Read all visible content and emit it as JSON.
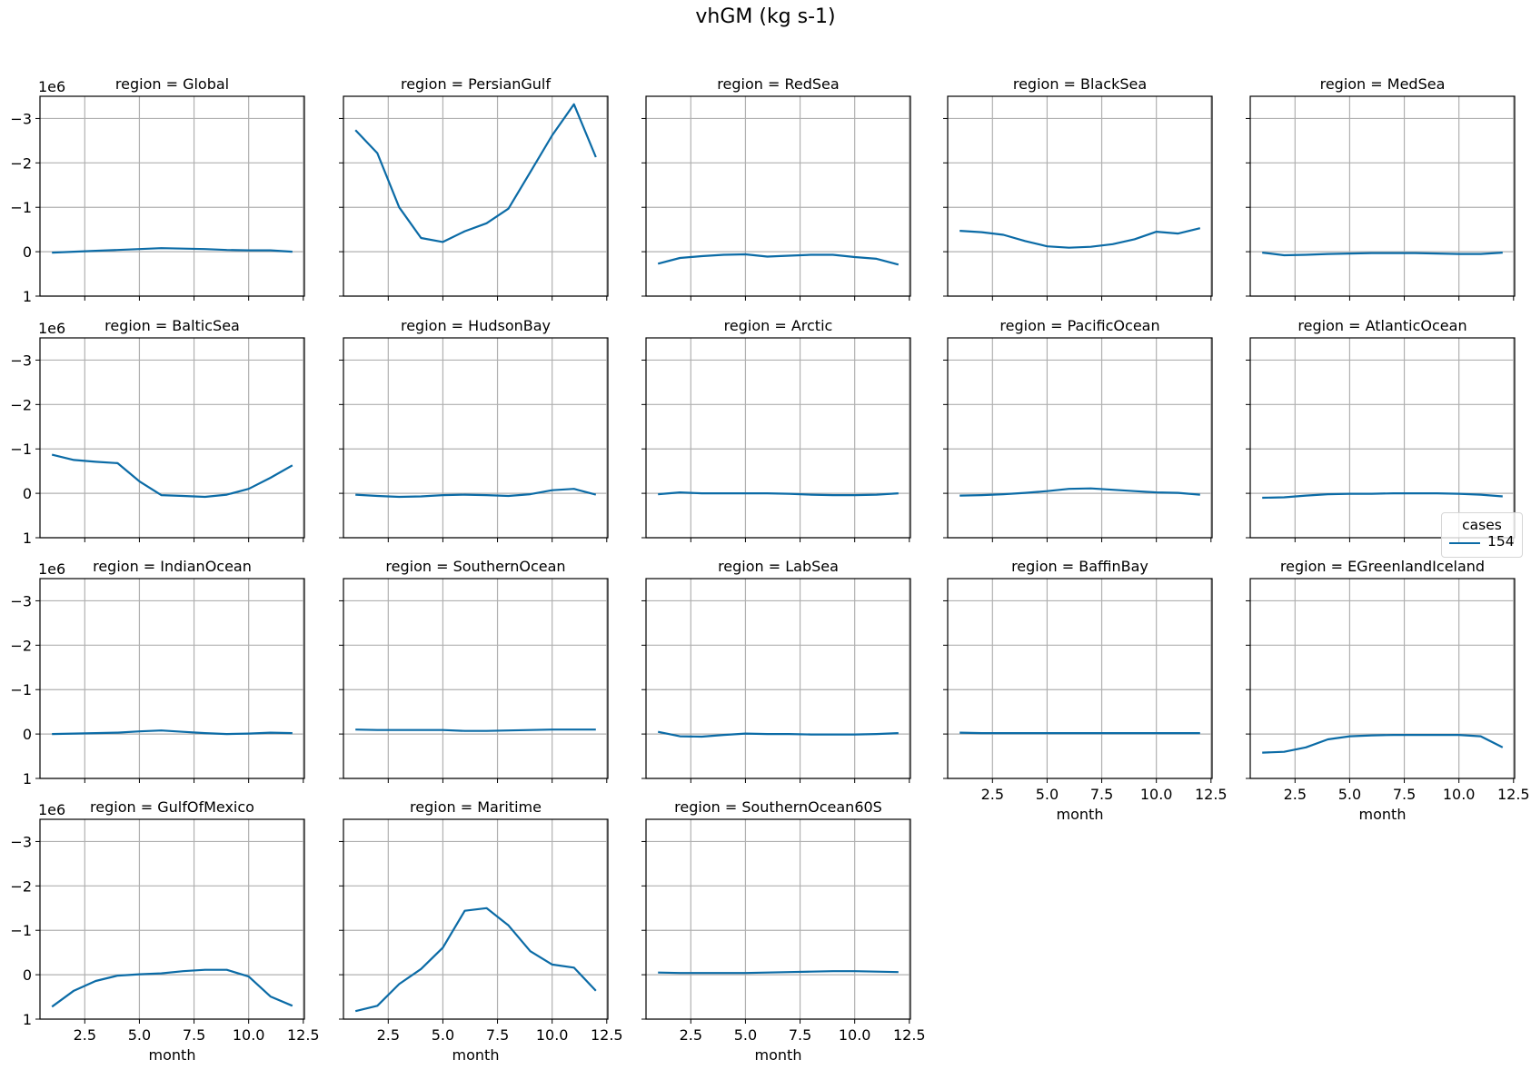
{
  "figure": {
    "title": "vhGM (kg s-1)",
    "line_color": "#0b6ba6",
    "grid_color": "#b0b0b0",
    "offset_label": "1e6",
    "xlabel": "month"
  },
  "legend": {
    "title": "cases",
    "entries": [
      {
        "label": "154",
        "color": "#0b6ba6"
      }
    ]
  },
  "chart_data": {
    "type": "line",
    "title": "vhGM (kg s-1)",
    "layout": "facet grid 4 rows x 5 cols, shared axes, y-axis inverted",
    "xlabel": "month",
    "ylabel": "",
    "y_scale_note": "values in units of 1e6",
    "xlim": [
      0.45,
      12.55
    ],
    "ylim": [
      1.0,
      -3.5
    ],
    "xticks": [
      "2.5",
      "5.0",
      "7.5",
      "10.0",
      "12.5"
    ],
    "xtick_values": [
      2.5,
      5.0,
      7.5,
      10.0,
      12.5
    ],
    "yticks": [
      "−3",
      "−2",
      "−1",
      "0",
      "1"
    ],
    "ytick_values": [
      -3,
      -2,
      -1,
      0,
      1
    ],
    "grid": true,
    "legend_position": "right, middle",
    "x": [
      1,
      2,
      3,
      4,
      5,
      6,
      7,
      8,
      9,
      10,
      11,
      12
    ],
    "panels": [
      {
        "title": "region = Global",
        "series": [
          {
            "name": "154",
            "values": [
              0.02,
              0.0,
              -0.02,
              -0.04,
              -0.06,
              -0.08,
              -0.07,
              -0.06,
              -0.04,
              -0.03,
              -0.03,
              0.0
            ]
          }
        ]
      },
      {
        "title": "region = PersianGulf",
        "series": [
          {
            "name": "154",
            "values": [
              -2.74,
              -2.22,
              -1.0,
              -0.31,
              -0.22,
              -0.46,
              -0.64,
              -0.97,
              -1.79,
              -2.62,
              -3.32,
              -2.13
            ]
          }
        ]
      },
      {
        "title": "region = RedSea",
        "series": [
          {
            "name": "154",
            "values": [
              0.27,
              0.14,
              0.1,
              0.07,
              0.06,
              0.11,
              0.09,
              0.07,
              0.07,
              0.12,
              0.16,
              0.29
            ]
          }
        ]
      },
      {
        "title": "region = BlackSea",
        "series": [
          {
            "name": "154",
            "values": [
              -0.47,
              -0.44,
              -0.38,
              -0.24,
              -0.12,
              -0.09,
              -0.11,
              -0.17,
              -0.28,
              -0.45,
              -0.41,
              -0.53
            ]
          }
        ]
      },
      {
        "title": "region = MedSea",
        "series": [
          {
            "name": "154",
            "values": [
              0.02,
              0.08,
              0.07,
              0.05,
              0.04,
              0.03,
              0.03,
              0.03,
              0.04,
              0.05,
              0.05,
              0.02
            ]
          }
        ]
      },
      {
        "title": "region = BalticSea",
        "series": [
          {
            "name": "154",
            "values": [
              -0.87,
              -0.75,
              -0.71,
              -0.68,
              -0.27,
              0.04,
              0.06,
              0.08,
              0.03,
              -0.1,
              -0.35,
              -0.63
            ]
          }
        ]
      },
      {
        "title": "region = HudsonBay",
        "series": [
          {
            "name": "154",
            "values": [
              0.03,
              0.06,
              0.08,
              0.07,
              0.04,
              0.03,
              0.04,
              0.06,
              0.02,
              -0.07,
              -0.1,
              0.03
            ]
          }
        ]
      },
      {
        "title": "region = Arctic",
        "series": [
          {
            "name": "154",
            "values": [
              0.02,
              -0.02,
              0.0,
              0.0,
              0.0,
              0.0,
              0.01,
              0.03,
              0.04,
              0.04,
              0.03,
              0.0
            ]
          }
        ]
      },
      {
        "title": "region = PacificOcean",
        "series": [
          {
            "name": "154",
            "values": [
              0.05,
              0.04,
              0.02,
              -0.01,
              -0.05,
              -0.1,
              -0.11,
              -0.08,
              -0.05,
              -0.02,
              -0.01,
              0.03
            ]
          }
        ]
      },
      {
        "title": "region = AtlanticOcean",
        "series": [
          {
            "name": "154",
            "values": [
              0.1,
              0.09,
              0.05,
              0.02,
              0.01,
              0.01,
              0.0,
              0.0,
              0.0,
              0.01,
              0.03,
              0.07
            ]
          }
        ]
      },
      {
        "title": "region = IndianOcean",
        "series": [
          {
            "name": "154",
            "values": [
              0.0,
              -0.01,
              -0.02,
              -0.03,
              -0.06,
              -0.08,
              -0.05,
              -0.02,
              0.0,
              -0.01,
              -0.03,
              -0.02
            ]
          }
        ]
      },
      {
        "title": "region = SouthernOcean",
        "series": [
          {
            "name": "154",
            "values": [
              -0.1,
              -0.09,
              -0.09,
              -0.09,
              -0.09,
              -0.07,
              -0.07,
              -0.08,
              -0.09,
              -0.1,
              -0.1,
              -0.1
            ]
          }
        ]
      },
      {
        "title": "region = LabSea",
        "series": [
          {
            "name": "154",
            "values": [
              -0.05,
              0.05,
              0.06,
              0.02,
              -0.01,
              0.0,
              0.0,
              0.01,
              0.01,
              0.01,
              0.0,
              -0.02
            ]
          }
        ]
      },
      {
        "title": "region = BaffinBay",
        "series": [
          {
            "name": "154",
            "values": [
              -0.03,
              -0.02,
              -0.02,
              -0.02,
              -0.02,
              -0.02,
              -0.02,
              -0.02,
              -0.02,
              -0.02,
              -0.02,
              -0.02
            ]
          }
        ]
      },
      {
        "title": "region = EGreenlandIceland",
        "series": [
          {
            "name": "154",
            "values": [
              0.42,
              0.4,
              0.3,
              0.12,
              0.05,
              0.03,
              0.02,
              0.02,
              0.02,
              0.02,
              0.05,
              0.3
            ]
          }
        ]
      },
      {
        "title": "region = GulfOfMexico",
        "series": [
          {
            "name": "154",
            "values": [
              0.72,
              0.36,
              0.14,
              0.02,
              -0.01,
              -0.03,
              -0.08,
              -0.11,
              -0.11,
              0.04,
              0.49,
              0.7
            ]
          }
        ]
      },
      {
        "title": "region = Maritime",
        "series": [
          {
            "name": "154",
            "values": [
              0.82,
              0.7,
              0.21,
              -0.13,
              -0.61,
              -1.44,
              -1.5,
              -1.11,
              -0.53,
              -0.23,
              -0.16,
              0.36
            ]
          }
        ]
      },
      {
        "title": "region = SouthernOcean60S",
        "series": [
          {
            "name": "154",
            "values": [
              -0.05,
              -0.04,
              -0.04,
              -0.04,
              -0.04,
              -0.05,
              -0.06,
              -0.07,
              -0.08,
              -0.08,
              -0.07,
              -0.06
            ]
          }
        ]
      }
    ]
  }
}
